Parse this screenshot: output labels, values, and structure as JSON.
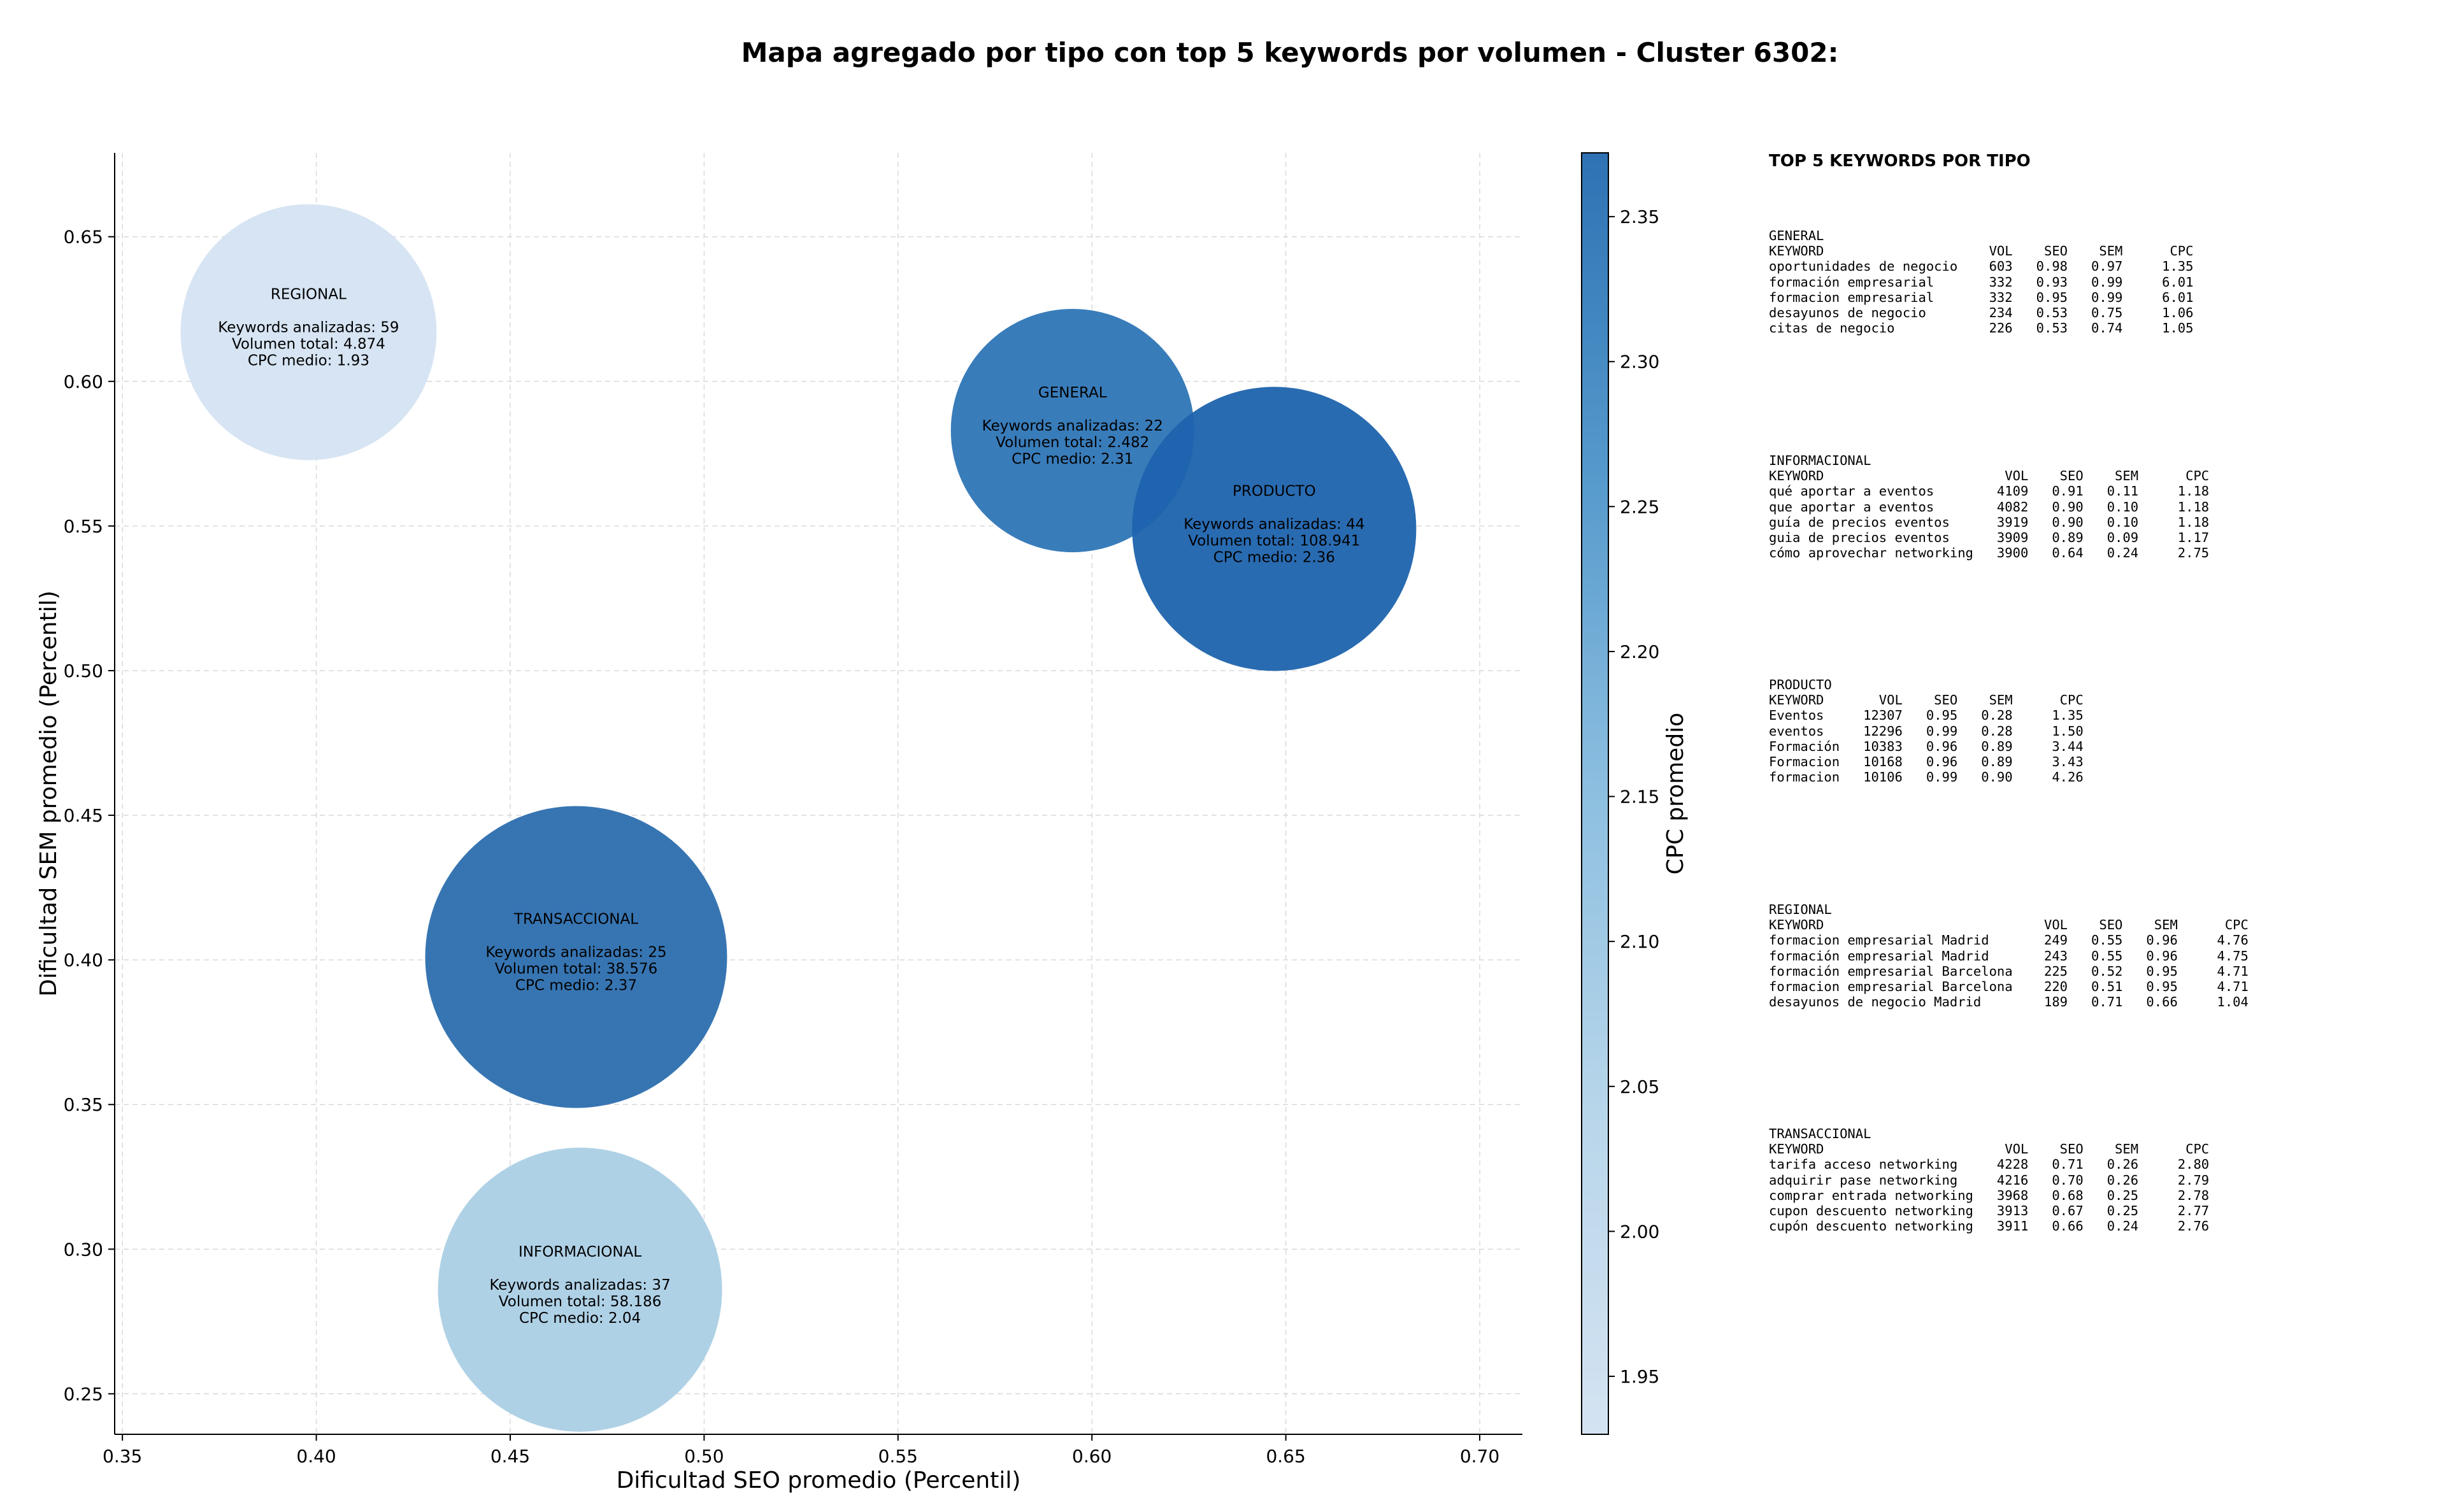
{
  "chart_data": {
    "type": "scatter",
    "title": "Mapa agregado por tipo con top 5 keywords por volumen - Cluster 6302:",
    "xlabel": "Dificultad SEO promedio (Percentil)",
    "ylabel": "Dificultad SEM promedio (Percentil)",
    "xlim": [
      0.348,
      0.711
    ],
    "ylim": [
      0.236,
      0.679
    ],
    "xticks": [
      "0.35",
      "0.40",
      "0.45",
      "0.50",
      "0.55",
      "0.60",
      "0.65",
      "0.70"
    ],
    "yticks": [
      "0.25",
      "0.30",
      "0.35",
      "0.40",
      "0.45",
      "0.50",
      "0.55",
      "0.60",
      "0.65"
    ],
    "grid": true,
    "colorbar": {
      "label": "CPC promedio",
      "min": 1.93,
      "max": 2.372,
      "ticks": [
        "1.95",
        "2.00",
        "2.05",
        "2.10",
        "2.15",
        "2.20",
        "2.25",
        "2.30",
        "2.35"
      ],
      "color_low": "#d4e3f2",
      "color_high": "#2e72b4"
    },
    "points": [
      {
        "name": "REGIONAL",
        "x": 0.398,
        "y": 0.617,
        "size": 2.45,
        "cpc": 1.93,
        "color": "#d4e3f2",
        "lines": [
          "Keywords analizadas: 59",
          "Volumen total: 4.874",
          "CPC medio: 1.93"
        ]
      },
      {
        "name": "GENERAL",
        "x": 0.595,
        "y": 0.583,
        "size": 2.33,
        "cpc": 2.31,
        "color": "#2e75b6",
        "lines": [
          "Keywords analizadas: 22",
          "Volumen total: 2.482",
          "CPC medio: 2.31"
        ]
      },
      {
        "name": "PRODUCTO",
        "x": 0.647,
        "y": 0.549,
        "size": 2.72,
        "cpc": 2.36,
        "color": "#1e63ad",
        "lines": [
          "Keywords analizadas: 44",
          "Volumen total: 108.941",
          "CPC medio: 2.36"
        ]
      },
      {
        "name": "TRANSACCIONAL",
        "x": 0.467,
        "y": 0.401,
        "size": 2.89,
        "cpc": 2.37,
        "color": "#2c6eae",
        "lines": [
          "Keywords analizadas: 25",
          "Volumen total: 38.576",
          "CPC medio: 2.37"
        ]
      },
      {
        "name": "INFORMACIONAL",
        "x": 0.468,
        "y": 0.286,
        "size": 2.72,
        "cpc": 2.04,
        "color": "#abcfe5",
        "lines": [
          "Keywords analizadas: 37",
          "Volumen total: 58.186",
          "CPC medio: 2.04"
        ]
      }
    ]
  },
  "panel": {
    "heading": "TOP 5 KEYWORDS POR TIPO",
    "blocks": [
      {
        "name": "general",
        "text": "GENERAL\nKEYWORD                     VOL    SEO    SEM      CPC\noportunidades de negocio    603   0.98   0.97     1.35\nformación empresarial       332   0.93   0.99     6.01\nformacion empresarial       332   0.95   0.99     6.01\ndesayunos de negocio        234   0.53   0.75     1.06\ncitas de negocio            226   0.53   0.74     1.05"
      },
      {
        "name": "informacional",
        "text": "INFORMACIONAL\nKEYWORD                       VOL    SEO    SEM      CPC\nqué aportar a eventos        4109   0.91   0.11     1.18\nque aportar a eventos        4082   0.90   0.10     1.18\nguía de precios eventos      3919   0.90   0.10     1.18\nguia de precios eventos      3909   0.89   0.09     1.17\ncómo aprovechar networking   3900   0.64   0.24     2.75"
      },
      {
        "name": "producto",
        "text": "PRODUCTO\nKEYWORD       VOL    SEO    SEM      CPC\nEventos     12307   0.95   0.28     1.35\neventos     12296   0.99   0.28     1.50\nFormación   10383   0.96   0.89     3.44\nFormacion   10168   0.96   0.89     3.43\nformacion   10106   0.99   0.90     4.26"
      },
      {
        "name": "regional",
        "text": "REGIONAL\nKEYWORD                            VOL    SEO    SEM      CPC\nformacion empresarial Madrid       249   0.55   0.96     4.76\nformación empresarial Madrid       243   0.55   0.96     4.75\nformación empresarial Barcelona    225   0.52   0.95     4.71\nformacion empresarial Barcelona    220   0.51   0.95     4.71\ndesayunos de negocio Madrid        189   0.71   0.66     1.04"
      },
      {
        "name": "transaccional",
        "text": "TRANSACCIONAL\nKEYWORD                       VOL    SEO    SEM      CPC\ntarifa acceso networking     4228   0.71   0.26     2.80\nadquirir pase networking     4216   0.70   0.26     2.79\ncomprar entrada networking   3968   0.68   0.25     2.78\ncupon descuento networking   3913   0.67   0.25     2.77\ncupón descuento networking   3911   0.66   0.24     2.76"
      }
    ]
  }
}
